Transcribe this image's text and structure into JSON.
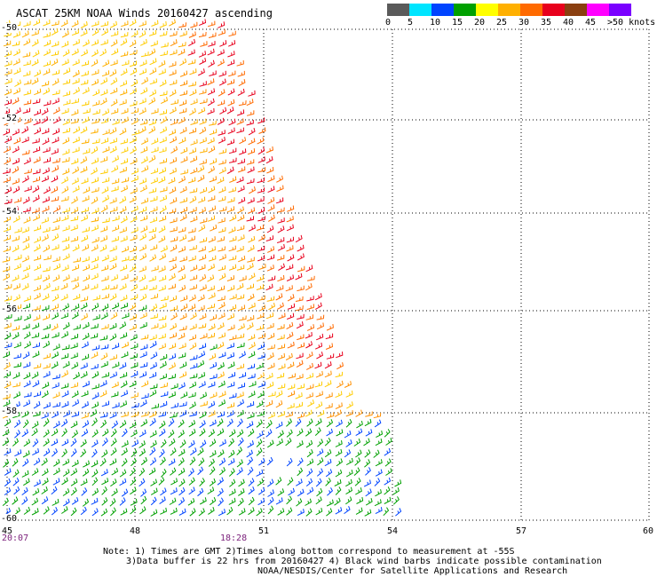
{
  "header": {
    "title": "ASCAT 25KM NOAA Winds 20160427 ascending"
  },
  "legend": {
    "labels": [
      "0",
      "5",
      "10",
      "15",
      "20",
      "25",
      "30",
      "35",
      "40",
      "45",
      ">50 knots"
    ],
    "colors": [
      "#5a5a5a",
      "#00e5ff",
      "#0044ff",
      "#00a000",
      "#ffff00",
      "#ffb000",
      "#ff6a00",
      "#e8001c",
      "#8a3f10",
      "#ff00ff",
      "#7a00ff"
    ]
  },
  "axes": {
    "lat_labels": [
      "-50",
      "-52",
      "-54",
      "-56",
      "-58",
      "-60"
    ],
    "lon_labels": [
      "45",
      "48",
      "51",
      "54",
      "57",
      "60"
    ],
    "time_labels": [
      "20:07",
      "18:28"
    ]
  },
  "notes": {
    "line1": "Note: 1) Times are GMT 2)Times along bottom correspond to measurement at -55S",
    "line2": "3)Data buffer is 22 hrs from 20160427 4) Black wind barbs indicate possible contamination",
    "line3": "NOAA/NESDIS/Center for Satellite Applications and Research"
  },
  "wind_field": {
    "regions": [
      {
        "name": "southwest",
        "dominant_speed": "15-20 knots",
        "color": "#00a000"
      },
      {
        "name": "central",
        "dominant_speed": "20-30 knots",
        "color": "#ffb000"
      },
      {
        "name": "northeast-edge",
        "dominant_speed": "30-40 knots",
        "color": "#e8001c"
      }
    ]
  }
}
